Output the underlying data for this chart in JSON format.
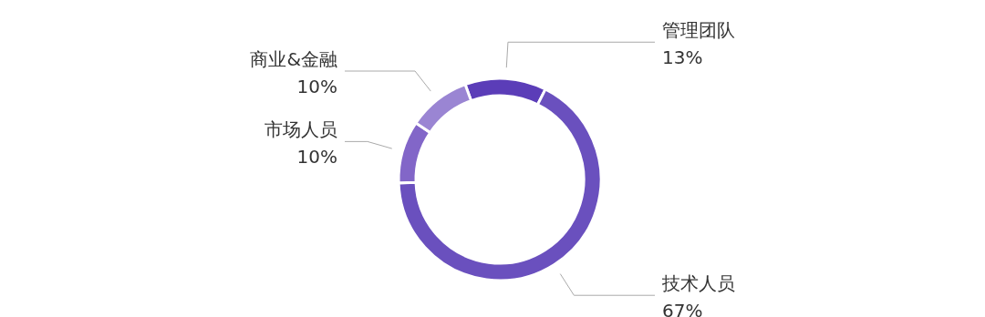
{
  "chart_data": {
    "type": "donut",
    "categories": [
      "管理团队",
      "技术人员",
      "市场人员",
      "商业&金融"
    ],
    "values": [
      13,
      67,
      10,
      10
    ],
    "colors": [
      "#5b3db8",
      "#6a50be",
      "#8266c8",
      "#9a85d3"
    ],
    "value_labels": [
      "13%",
      "67%",
      "10%",
      "10%"
    ]
  }
}
